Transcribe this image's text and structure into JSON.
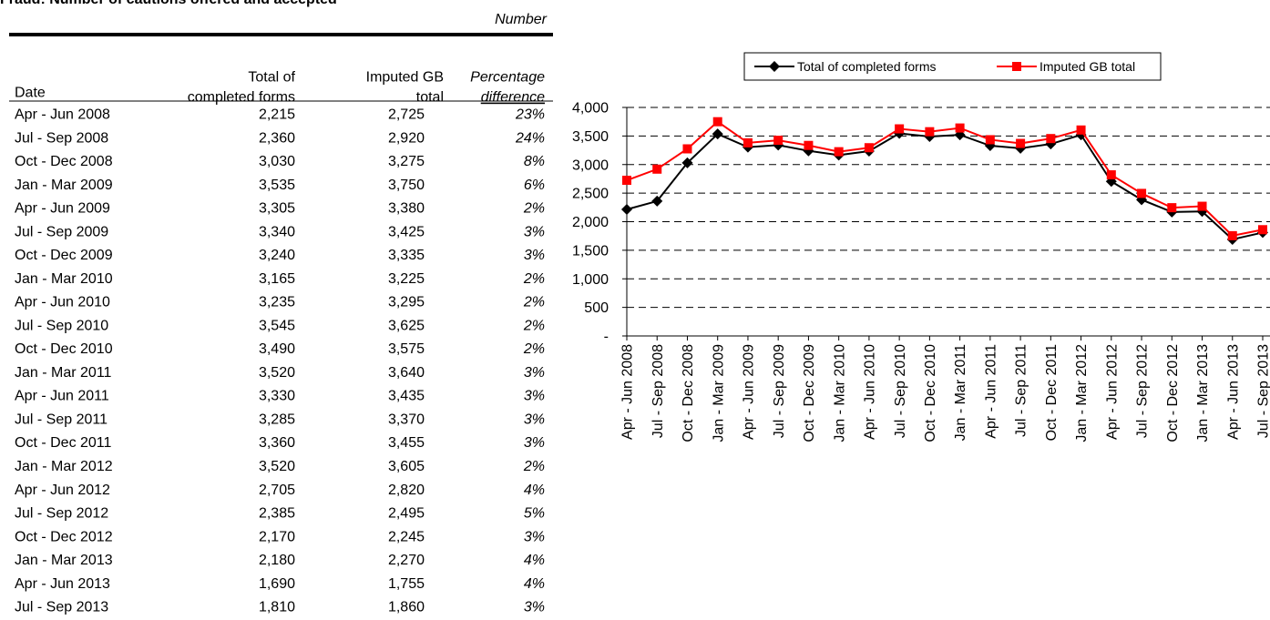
{
  "table": {
    "title": "Fraud: Number of cautions offered and accepted",
    "unit": "Number",
    "headers": [
      "Date",
      [
        "Total of",
        "completed forms"
      ],
      [
        "Imputed GB",
        "total"
      ],
      [
        "Percentage",
        "difference"
      ]
    ],
    "rows": [
      [
        "Apr - Jun 2008",
        "2,215",
        "2,725",
        "23%"
      ],
      [
        "Jul - Sep 2008",
        "2,360",
        "2,920",
        "24%"
      ],
      [
        "Oct - Dec 2008",
        "3,030",
        "3,275",
        "8%"
      ],
      [
        "Jan - Mar 2009",
        "3,535",
        "3,750",
        "6%"
      ],
      [
        "Apr - Jun 2009",
        "3,305",
        "3,380",
        "2%"
      ],
      [
        "Jul - Sep 2009",
        "3,340",
        "3,425",
        "3%"
      ],
      [
        "Oct - Dec 2009",
        "3,240",
        "3,335",
        "3%"
      ],
      [
        "Jan - Mar 2010",
        "3,165",
        "3,225",
        "2%"
      ],
      [
        "Apr - Jun 2010",
        "3,235",
        "3,295",
        "2%"
      ],
      [
        "Jul - Sep 2010",
        "3,545",
        "3,625",
        "2%"
      ],
      [
        "Oct - Dec 2010",
        "3,490",
        "3,575",
        "2%"
      ],
      [
        "Jan - Mar 2011",
        "3,520",
        "3,640",
        "3%"
      ],
      [
        "Apr - Jun 2011",
        "3,330",
        "3,435",
        "3%"
      ],
      [
        "Jul - Sep 2011",
        "3,285",
        "3,370",
        "3%"
      ],
      [
        "Oct - Dec 2011",
        "3,360",
        "3,455",
        "3%"
      ],
      [
        "Jan - Mar 2012",
        "3,520",
        "3,605",
        "2%"
      ],
      [
        "Apr - Jun 2012",
        "2,705",
        "2,820",
        "4%"
      ],
      [
        "Jul - Sep 2012",
        "2,385",
        "2,495",
        "5%"
      ],
      [
        "Oct - Dec 2012",
        "2,170",
        "2,245",
        "3%"
      ],
      [
        "Jan - Mar 2013",
        "2,180",
        "2,270",
        "4%"
      ],
      [
        "Apr - Jun 2013",
        "1,690",
        "1,755",
        "4%"
      ],
      [
        "Jul - Sep 2013",
        "1,810",
        "1,860",
        "3%"
      ]
    ]
  },
  "chart_data": {
    "type": "line",
    "categories": [
      "Apr - Jun 2008",
      "Jul - Sep 2008",
      "Oct - Dec 2008",
      "Jan - Mar 2009",
      "Apr - Jun 2009",
      "Jul - Sep 2009",
      "Oct - Dec 2009",
      "Jan - Mar 2010",
      "Apr - Jun 2010",
      "Jul - Sep 2010",
      "Oct - Dec 2010",
      "Jan - Mar 2011",
      "Apr - Jun 2011",
      "Jul - Sep 2011",
      "Oct - Dec 2011",
      "Jan - Mar 2012",
      "Apr - Jun 2012",
      "Jul - Sep 2012",
      "Oct - Dec 2012",
      "Jan - Mar 2013",
      "Apr - Jun 2013",
      "Jul - Sep 2013"
    ],
    "series": [
      {
        "name": "Total of completed forms",
        "color": "#000000",
        "marker": "diamond",
        "values": [
          2215,
          2360,
          3030,
          3535,
          3305,
          3340,
          3240,
          3165,
          3235,
          3545,
          3490,
          3520,
          3330,
          3285,
          3360,
          3520,
          2705,
          2385,
          2170,
          2180,
          1690,
          1810
        ]
      },
      {
        "name": "Imputed GB total",
        "color": "#ff0000",
        "marker": "square",
        "values": [
          2725,
          2920,
          3275,
          3750,
          3380,
          3425,
          3335,
          3225,
          3295,
          3625,
          3575,
          3640,
          3435,
          3370,
          3455,
          3605,
          2820,
          2495,
          2245,
          2270,
          1755,
          1860
        ]
      }
    ],
    "ylim": [
      0,
      4000
    ],
    "yticks": [
      {
        "value": 0,
        "label": "-"
      },
      500,
      {
        "value": 1000,
        "label": "1,000"
      },
      {
        "value": 1500,
        "label": "1,500"
      },
      {
        "value": 2000,
        "label": "2,000"
      },
      {
        "value": 2500,
        "label": "2,500"
      },
      {
        "value": 3000,
        "label": "3,000"
      },
      {
        "value": 3500,
        "label": "3,500"
      },
      {
        "value": 4000,
        "label": "4,000"
      }
    ],
    "grid": true,
    "legend": "top"
  }
}
